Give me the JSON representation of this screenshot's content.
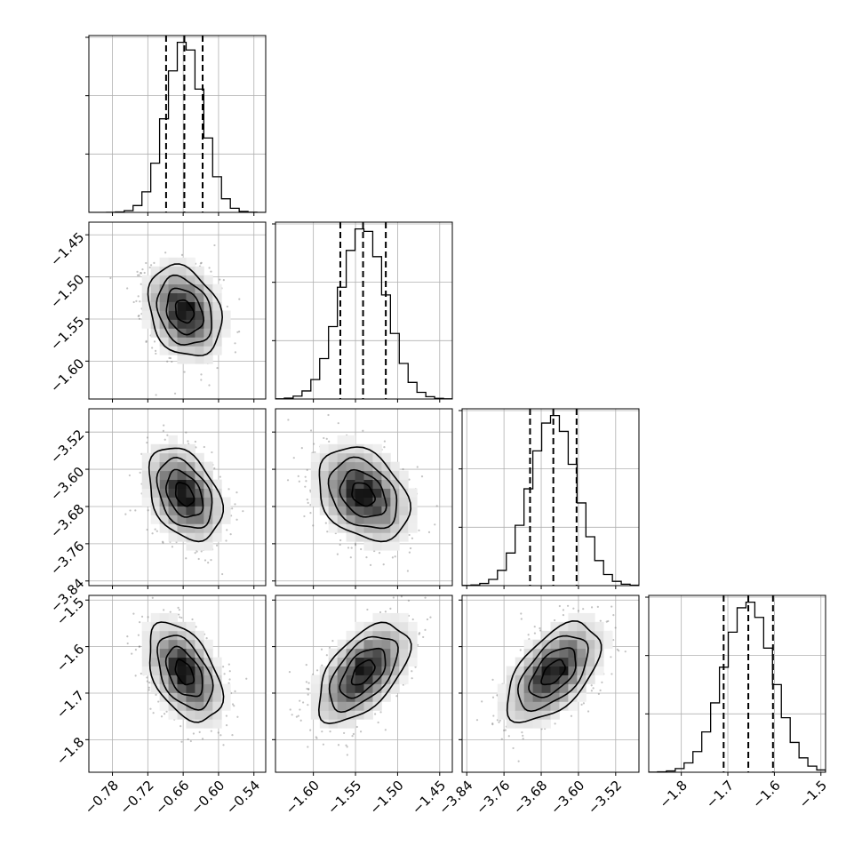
{
  "chart_data": {
    "type": "corner",
    "title": "",
    "parameters": [
      {
        "center": -0.658,
        "sigma": 0.031,
        "quantiles": [
          -0.689,
          -0.658,
          -0.627
        ],
        "range": [
          -0.82,
          -0.52
        ],
        "ticks": [
          -0.78,
          -0.72,
          -0.66,
          -0.6,
          -0.54
        ],
        "tick_labels": [
          "−0.78",
          "−0.72",
          "−0.66",
          "−0.60",
          "−0.54"
        ]
      },
      {
        "center": -1.541,
        "sigma": 0.027,
        "quantiles": [
          -1.568,
          -1.541,
          -1.514
        ],
        "range": [
          -1.645,
          -1.435
        ],
        "ticks": [
          -1.6,
          -1.55,
          -1.5,
          -1.45
        ],
        "tick_labels": [
          "−1.60",
          "−1.55",
          "−1.50",
          "−1.45"
        ]
      },
      {
        "center": -3.654,
        "sigma": 0.05,
        "quantiles": [
          -3.704,
          -3.654,
          -3.604
        ],
        "range": [
          -3.85,
          -3.47
        ],
        "ticks": [
          -3.84,
          -3.76,
          -3.68,
          -3.6,
          -3.52
        ],
        "tick_labels": [
          "−3.84",
          "−3.76",
          "−3.68",
          "−3.60",
          "−3.52"
        ]
      },
      {
        "center": -1.656,
        "sigma": 0.053,
        "quantiles": [
          -1.709,
          -1.656,
          -1.603
        ],
        "range": [
          -1.87,
          -1.49
        ],
        "ticks": [
          -1.8,
          -1.7,
          -1.6,
          -1.5
        ],
        "tick_labels": [
          "−1.8",
          "−1.7",
          "−1.6",
          "−1.5"
        ]
      }
    ],
    "correlations": {
      "1-0": -0.25,
      "2-0": -0.35,
      "2-1": -0.3,
      "3-0": -0.45,
      "3-1": 0.55,
      "3-2": 0.55
    },
    "histogram_bins": 20,
    "grid": true,
    "colors": {
      "contour": "#000000",
      "scatter": "#777777",
      "density_max": "#000000"
    }
  }
}
